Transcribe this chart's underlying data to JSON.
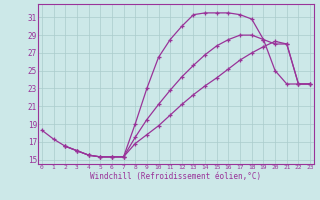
{
  "title": "Windchill (Refroidissement éolien,°C)",
  "bg_color": "#cce8e8",
  "line_color": "#993399",
  "grid_color": "#aacccc",
  "spine_color": "#993399",
  "xlim": [
    -0.3,
    23.3
  ],
  "ylim": [
    14.5,
    32.5
  ],
  "xticks": [
    0,
    1,
    2,
    3,
    4,
    5,
    6,
    7,
    8,
    9,
    10,
    11,
    12,
    13,
    14,
    15,
    16,
    17,
    18,
    19,
    20,
    21,
    22,
    23
  ],
  "yticks": [
    15,
    17,
    19,
    21,
    23,
    25,
    27,
    29,
    31
  ],
  "curve1_x": [
    0,
    1,
    2,
    3,
    4,
    5,
    6,
    7,
    8,
    9,
    10,
    11,
    12,
    13,
    14,
    15,
    16,
    17,
    18,
    19,
    20,
    21,
    22,
    23
  ],
  "curve1_y": [
    18.3,
    17.3,
    16.5,
    16.0,
    15.5,
    15.3,
    15.3,
    15.3,
    19.0,
    23.0,
    26.5,
    28.5,
    30.0,
    31.3,
    31.5,
    31.5,
    31.5,
    31.3,
    30.8,
    28.5,
    25.0,
    23.5,
    23.5,
    23.5
  ],
  "curve2_x": [
    2,
    3,
    4,
    5,
    6,
    7,
    8,
    9,
    10,
    11,
    12,
    13,
    14,
    15,
    16,
    17,
    18,
    19,
    20,
    21,
    22,
    23
  ],
  "curve2_y": [
    16.5,
    16.0,
    15.5,
    15.3,
    15.3,
    15.3,
    16.8,
    17.8,
    18.8,
    20.0,
    21.2,
    22.3,
    23.3,
    24.2,
    25.2,
    26.2,
    27.0,
    27.7,
    28.3,
    28.0,
    23.5,
    23.5
  ],
  "curve3_x": [
    2,
    3,
    4,
    5,
    6,
    7,
    8,
    9,
    10,
    11,
    12,
    13,
    14,
    15,
    16,
    17,
    18,
    19,
    20,
    21,
    22,
    23
  ],
  "curve3_y": [
    16.5,
    16.0,
    15.5,
    15.3,
    15.3,
    15.3,
    17.5,
    19.5,
    21.2,
    22.8,
    24.3,
    25.6,
    26.8,
    27.8,
    28.5,
    29.0,
    29.0,
    28.5,
    28.0,
    28.0,
    23.5,
    23.5
  ]
}
